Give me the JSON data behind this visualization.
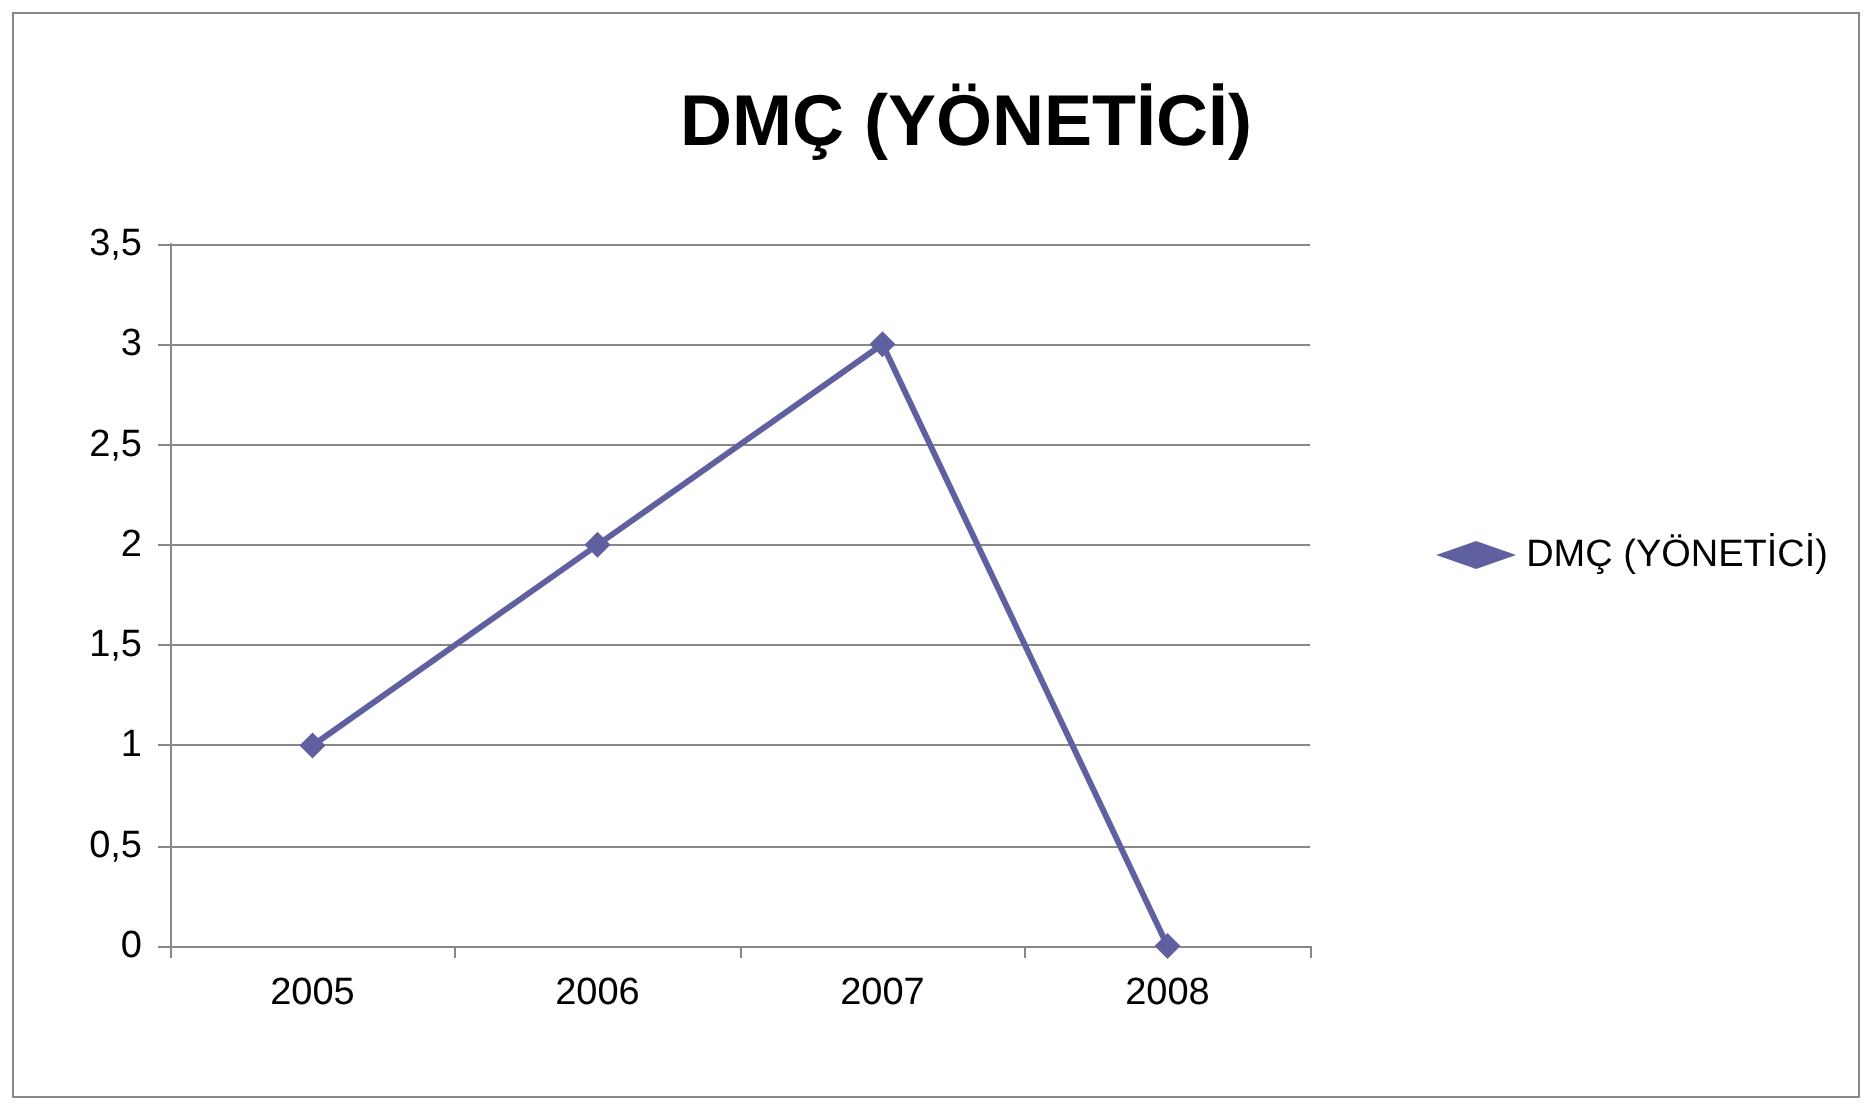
{
  "chart_data": {
    "type": "line",
    "title": "DMÇ (YÖNETİCİ)",
    "categories": [
      "2005",
      "2006",
      "2007",
      "2008"
    ],
    "series": [
      {
        "name": "DMÇ (YÖNETİCİ)",
        "color": "#6060a0",
        "values": [
          1,
          2,
          3,
          0
        ]
      }
    ],
    "ylim": [
      0,
      3.5
    ],
    "yticks": [
      0,
      {
        "value": 0.5,
        "label": "0,5"
      },
      1,
      {
        "value": 1.5,
        "label": "1,5"
      },
      2,
      {
        "value": 2.5,
        "label": "2,5"
      },
      3,
      {
        "value": 3.5,
        "label": "3,5"
      }
    ],
    "grid": "y",
    "legend": "right",
    "marker": "diamond",
    "line_style": "solid"
  }
}
